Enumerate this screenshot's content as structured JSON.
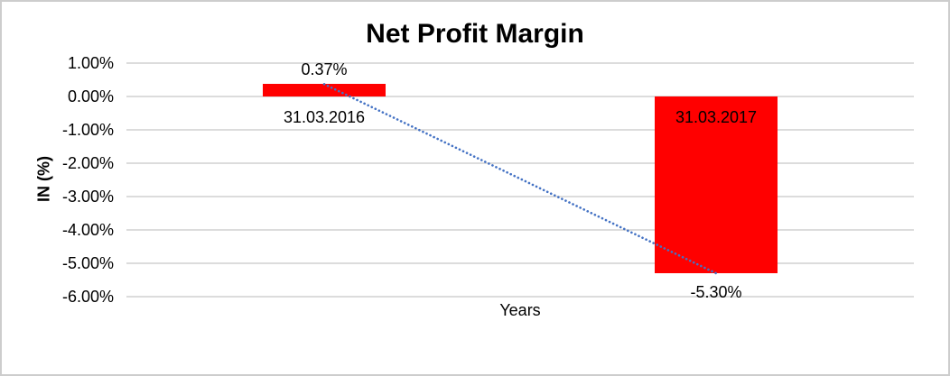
{
  "chart_data": {
    "type": "bar",
    "title": "Net Profit Margin",
    "xlabel": "Years",
    "ylabel": "IN (%)",
    "categories": [
      "31.03.2016",
      "31.03.2017"
    ],
    "series": [
      {
        "name": "Net Profit Margin",
        "color": "#FF0000",
        "values": [
          0.37,
          -5.3
        ],
        "data_labels": [
          "0.37%",
          "-5.30%"
        ]
      }
    ],
    "trendline": {
      "type": "linear",
      "style": "dotted",
      "color": "#4472C4",
      "start_value": 0.37,
      "end_value": -5.3
    },
    "y_axis": {
      "tick_labels": [
        "1.00%",
        "0.00%",
        "-1.00%",
        "-2.00%",
        "-3.00%",
        "-4.00%",
        "-5.00%",
        "-6.00%"
      ],
      "tick_values": [
        1,
        0,
        -1,
        -2,
        -3,
        -4,
        -5,
        -6
      ],
      "min": -6,
      "max": 1
    },
    "grid": true,
    "grid_color": "#dcdcdc",
    "legend": "none",
    "background": "#FFFFFF",
    "frame_border_color": "#CDCDCD",
    "text_color": "#000000"
  }
}
